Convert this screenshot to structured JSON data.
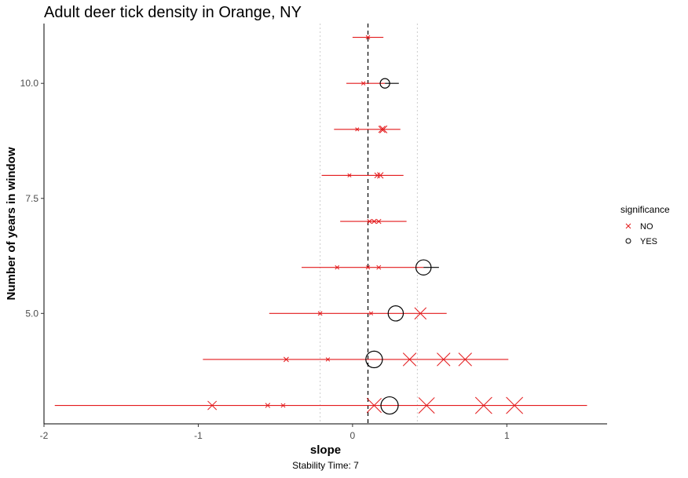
{
  "chart_data": {
    "type": "scatter",
    "title": "Adult deer tick density in Orange, NY",
    "xlabel": "slope",
    "ylabel": "Number of years in window",
    "caption": "Stability Time: 7",
    "xlim": [
      -2.0,
      1.65
    ],
    "ylim": [
      2.6,
      11.3
    ],
    "x_ticks": [
      -2,
      -1,
      0,
      1
    ],
    "x_tick_labels": [
      "-2",
      "-1",
      "0",
      "1"
    ],
    "y_ticks": [
      5,
      7.5,
      10
    ],
    "y_tick_labels": [
      "5.0",
      "7.5",
      "10.0"
    ],
    "grid": false,
    "reference_lines": {
      "mean_slope": 0.1,
      "lower_bound": -0.21,
      "upper_bound": 0.42
    },
    "colors": {
      "NO": "#e31a1c",
      "YES": "#000000",
      "reference_dotted": "#cccccc",
      "reference_dashed": "#000000"
    },
    "legend": {
      "title": "significance",
      "position": "right",
      "entries": [
        {
          "label": "NO",
          "shape": "x",
          "color": "#e31a1c"
        },
        {
          "label": "YES",
          "shape": "circle",
          "color": "#000000"
        }
      ]
    },
    "series": [
      {
        "name": "NO",
        "points": [
          {
            "window": 11,
            "slope": 0.1,
            "ci": [
              0.0,
              0.2
            ],
            "r2": 0.05
          },
          {
            "window": 10,
            "slope": 0.07,
            "ci": [
              -0.04,
              0.17
            ],
            "r2": 0.04
          },
          {
            "window": 9,
            "slope": 0.19,
            "ci": [
              0.08,
              0.31
            ],
            "r2": 0.25
          },
          {
            "window": 9,
            "slope": 0.2,
            "ci": [
              0.08,
              0.31
            ],
            "r2": 0.3
          },
          {
            "window": 9,
            "slope": 0.03,
            "ci": [
              -0.12,
              0.22
            ],
            "r2": 0.02
          },
          {
            "window": 8,
            "slope": 0.16,
            "ci": [
              -0.01,
              0.32
            ],
            "r2": 0.15
          },
          {
            "window": 8,
            "slope": 0.18,
            "ci": [
              0.0,
              0.33
            ],
            "r2": 0.2
          },
          {
            "window": 8,
            "slope": -0.02,
            "ci": [
              -0.2,
              0.2
            ],
            "r2": 0.02
          },
          {
            "window": 7,
            "slope": 0.11,
            "ci": [
              -0.08,
              0.35
            ],
            "r2": 0.08
          },
          {
            "window": 7,
            "slope": 0.14,
            "ci": [
              -0.05,
              0.33
            ],
            "r2": 0.09
          },
          {
            "window": 7,
            "slope": 0.17,
            "ci": [
              0.0,
              0.3
            ],
            "r2": 0.1
          },
          {
            "window": 6,
            "slope": -0.1,
            "ci": [
              -0.33,
              0.15
            ],
            "r2": 0.05
          },
          {
            "window": 6,
            "slope": 0.1,
            "ci": [
              -0.1,
              0.3
            ],
            "r2": 0.04
          },
          {
            "window": 6,
            "slope": 0.17,
            "ci": [
              -0.05,
              0.35
            ],
            "r2": 0.07
          },
          {
            "window": 5,
            "slope": -0.21,
            "ci": [
              -0.54,
              0.1
            ],
            "r2": 0.06
          },
          {
            "window": 5,
            "slope": 0.44,
            "ci": [
              0.2,
              0.6
            ],
            "r2": 0.6
          },
          {
            "window": 5,
            "slope": 0.12,
            "ci": [
              -0.2,
              0.45
            ],
            "r2": 0.03
          },
          {
            "window": 4,
            "slope": -0.43,
            "ci": [
              -0.97,
              0.2
            ],
            "r2": 0.12
          },
          {
            "window": 4,
            "slope": 0.37,
            "ci": [
              0.0,
              0.8
            ],
            "r2": 0.7
          },
          {
            "window": 4,
            "slope": 0.59,
            "ci": [
              0.1,
              1.0
            ],
            "r2": 0.7
          },
          {
            "window": 4,
            "slope": 0.73,
            "ci": [
              0.2,
              1.0
            ],
            "r2": 0.7
          },
          {
            "window": 4,
            "slope": -0.16,
            "ci": [
              -0.6,
              0.3
            ],
            "r2": 0.04
          },
          {
            "window": 3,
            "slope": -0.91,
            "ci": [
              -1.93,
              0.5
            ],
            "r2": 0.4
          },
          {
            "window": 3,
            "slope": -0.55,
            "ci": [
              -1.5,
              0.5
            ],
            "r2": 0.1
          },
          {
            "window": 3,
            "slope": -0.45,
            "ci": [
              -1.4,
              0.6
            ],
            "r2": 0.07
          },
          {
            "window": 3,
            "slope": 0.14,
            "ci": [
              -0.9,
              1.2
            ],
            "r2": 0.8
          },
          {
            "window": 3,
            "slope": 0.48,
            "ci": [
              -0.5,
              1.5
            ],
            "r2": 0.9
          },
          {
            "window": 3,
            "slope": 0.85,
            "ci": [
              -0.2,
              1.5
            ],
            "r2": 0.95
          },
          {
            "window": 3,
            "slope": 1.05,
            "ci": [
              0.0,
              1.5
            ],
            "r2": 0.95
          }
        ]
      },
      {
        "name": "YES",
        "points": [
          {
            "window": 10,
            "slope": 0.21,
            "ci": [
              0.12,
              0.3
            ],
            "r2": 0.45
          },
          {
            "window": 6,
            "slope": 0.46,
            "ci": [
              0.3,
              0.6
            ],
            "r2": 0.85
          },
          {
            "window": 5,
            "slope": 0.28,
            "ci": [
              0.1,
              0.45
            ],
            "r2": 0.85
          },
          {
            "window": 4,
            "slope": 0.14,
            "ci": [
              -0.1,
              0.4
            ],
            "r2": 0.95
          },
          {
            "window": 3,
            "slope": 0.24,
            "ci": [
              0.0,
              0.5
            ],
            "r2": 1.0
          }
        ]
      }
    ],
    "interval_lines": [
      {
        "window": 11,
        "from": 0.0,
        "to": 0.2,
        "series": "NO"
      },
      {
        "window": 10,
        "from": -0.04,
        "to": 0.21,
        "series": "NO"
      },
      {
        "window": 10,
        "from": 0.21,
        "to": 0.3,
        "series": "YES"
      },
      {
        "window": 9,
        "from": -0.12,
        "to": 0.31,
        "series": "NO"
      },
      {
        "window": 8,
        "from": -0.2,
        "to": 0.33,
        "series": "NO"
      },
      {
        "window": 7,
        "from": -0.08,
        "to": 0.35,
        "series": "NO"
      },
      {
        "window": 6,
        "from": -0.33,
        "to": 0.46,
        "series": "NO"
      },
      {
        "window": 6,
        "from": 0.46,
        "to": 0.56,
        "series": "YES"
      },
      {
        "window": 5,
        "from": -0.54,
        "to": 0.61,
        "series": "NO"
      },
      {
        "window": 4,
        "from": -0.97,
        "to": 1.01,
        "series": "NO"
      },
      {
        "window": 3,
        "from": -1.93,
        "to": 1.52,
        "series": "NO"
      }
    ]
  }
}
